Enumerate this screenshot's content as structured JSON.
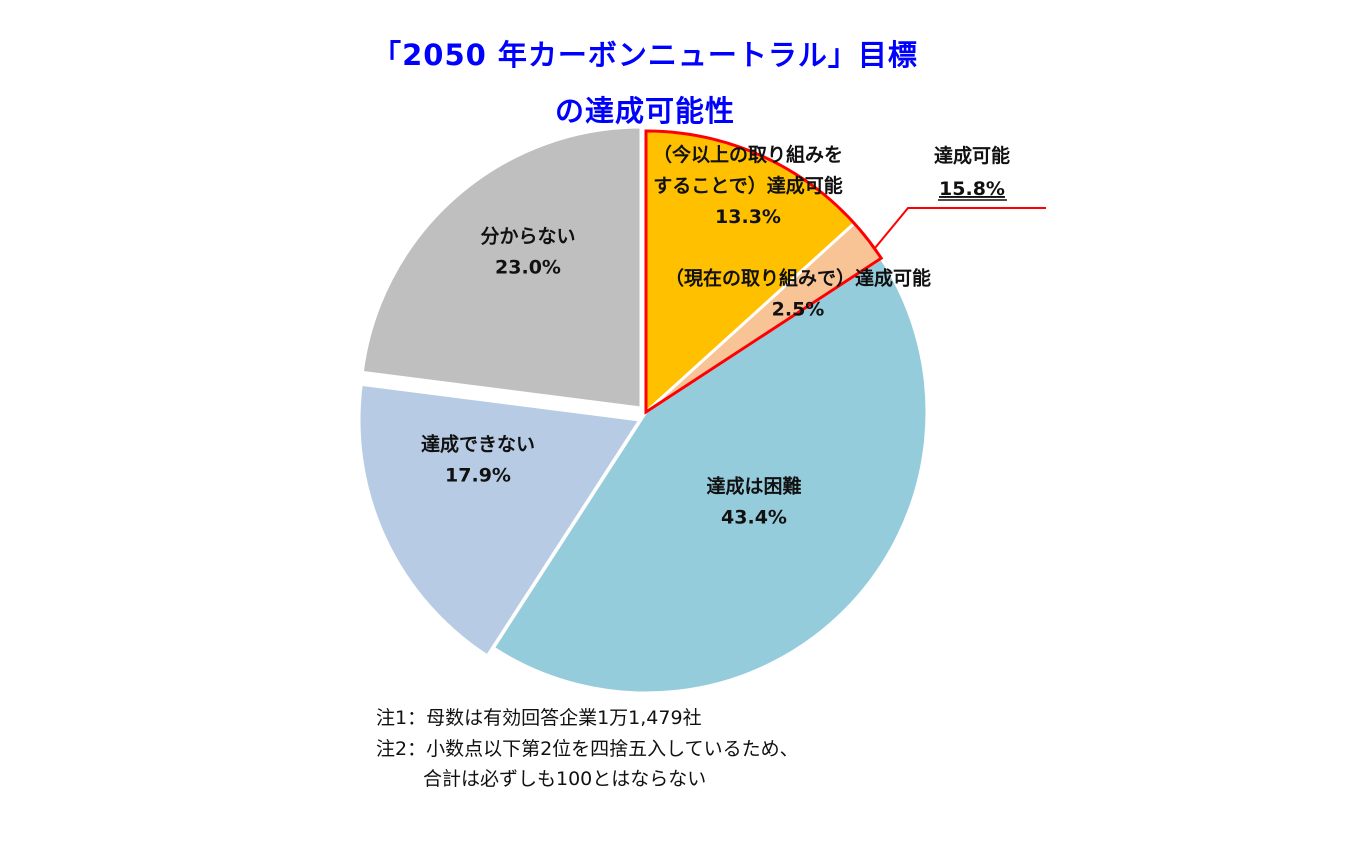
{
  "title": {
    "line1": "「2050 年カーボンニュートラル」目標",
    "line2": "の達成可能性"
  },
  "chart_data": {
    "type": "pie",
    "start_angle_deg": 0,
    "direction": "clockwise",
    "slices": [
      {
        "label_lines": [
          "（今以上の取り組みを",
          "することで）達成可能"
        ],
        "value": 13.3,
        "value_text": "13.3%",
        "color": "#ffc000",
        "highlight": true
      },
      {
        "label_lines": [
          "（現在の取り組みで）達成可能"
        ],
        "value": 2.5,
        "value_text": "2.5%",
        "color": "#f8c496",
        "highlight": true
      },
      {
        "label_lines": [
          "達成は困難"
        ],
        "value": 43.4,
        "value_text": "43.4%",
        "color": "#95ccdc"
      },
      {
        "label_lines": [
          "達成できない"
        ],
        "value": 17.9,
        "value_text": "17.9%",
        "color": "#b7cce4"
      },
      {
        "label_lines": [
          "分からない"
        ],
        "value": 23.0,
        "value_text": "23.0%",
        "color": "#bfbfbf"
      }
    ],
    "highlight_color": "#ff0000",
    "callout": {
      "label": "達成可能",
      "value_text": "15.8%"
    }
  },
  "notes": [
    "注1：母数は有効回答企業1万1,479社",
    "注2：小数点以下第2位を四捨五入しているため、",
    "合計は必ずしも100とはならない"
  ]
}
